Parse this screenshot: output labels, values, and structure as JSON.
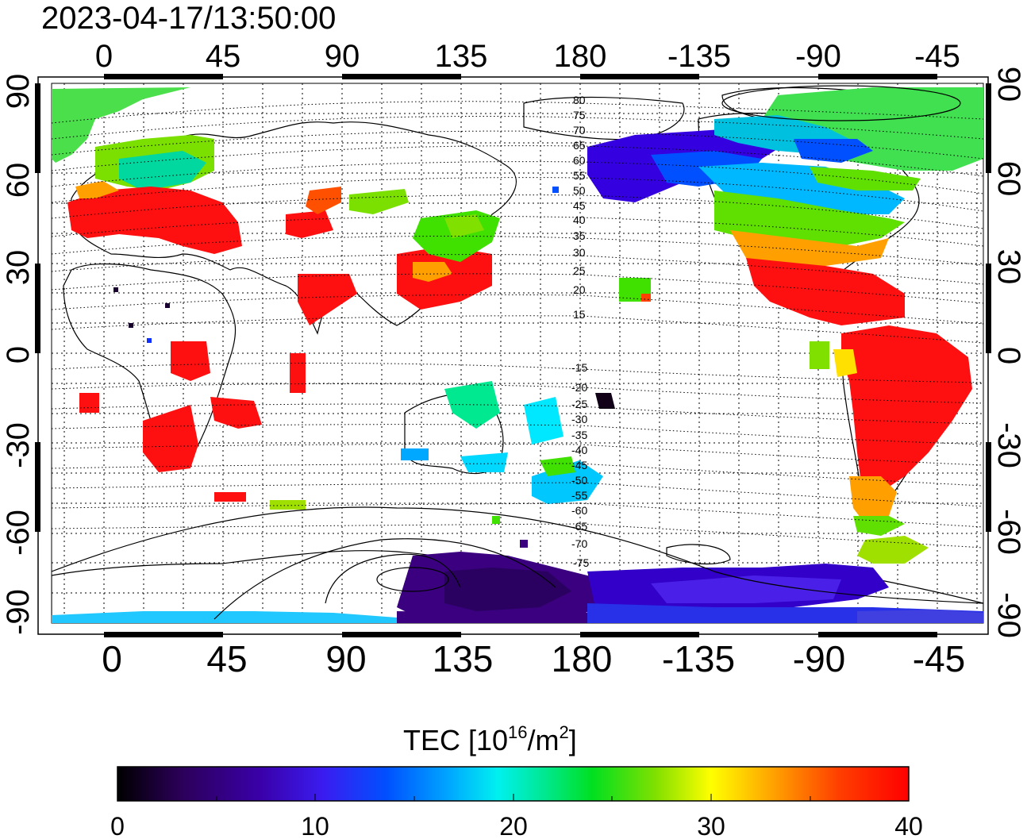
{
  "title": "2023-04-17/13:50:00",
  "map": {
    "lon_ticks": [
      "0",
      "45",
      "90",
      "135",
      "180",
      "-135",
      "-90",
      "-45"
    ],
    "lat_ticks": [
      "90",
      "60",
      "30",
      "0",
      "-30",
      "-60",
      "-90"
    ],
    "mag_lat_labels_north": [
      "80",
      "75",
      "70",
      "65",
      "60",
      "55",
      "50",
      "45",
      "40",
      "35",
      "30",
      "25",
      "20",
      "15"
    ],
    "mag_lat_labels_south": [
      "-15",
      "-20",
      "-25",
      "-30",
      "-35",
      "-40",
      "-45",
      "-50",
      "-55",
      "-60",
      "-65",
      "-70",
      "-75"
    ]
  },
  "colorbar": {
    "label_main": "TEC  [10",
    "label_sup1": "16",
    "label_mid": "/m",
    "label_sup2": "2",
    "label_end": "]",
    "ticks": [
      "0",
      "10",
      "20",
      "30",
      "40"
    ],
    "colors": [
      "#000000",
      "#3a0078",
      "#3400e6",
      "#0050ff",
      "#00e8ff",
      "#00e038",
      "#6ee000",
      "#ffff00",
      "#ff8000",
      "#ff1000"
    ]
  }
}
